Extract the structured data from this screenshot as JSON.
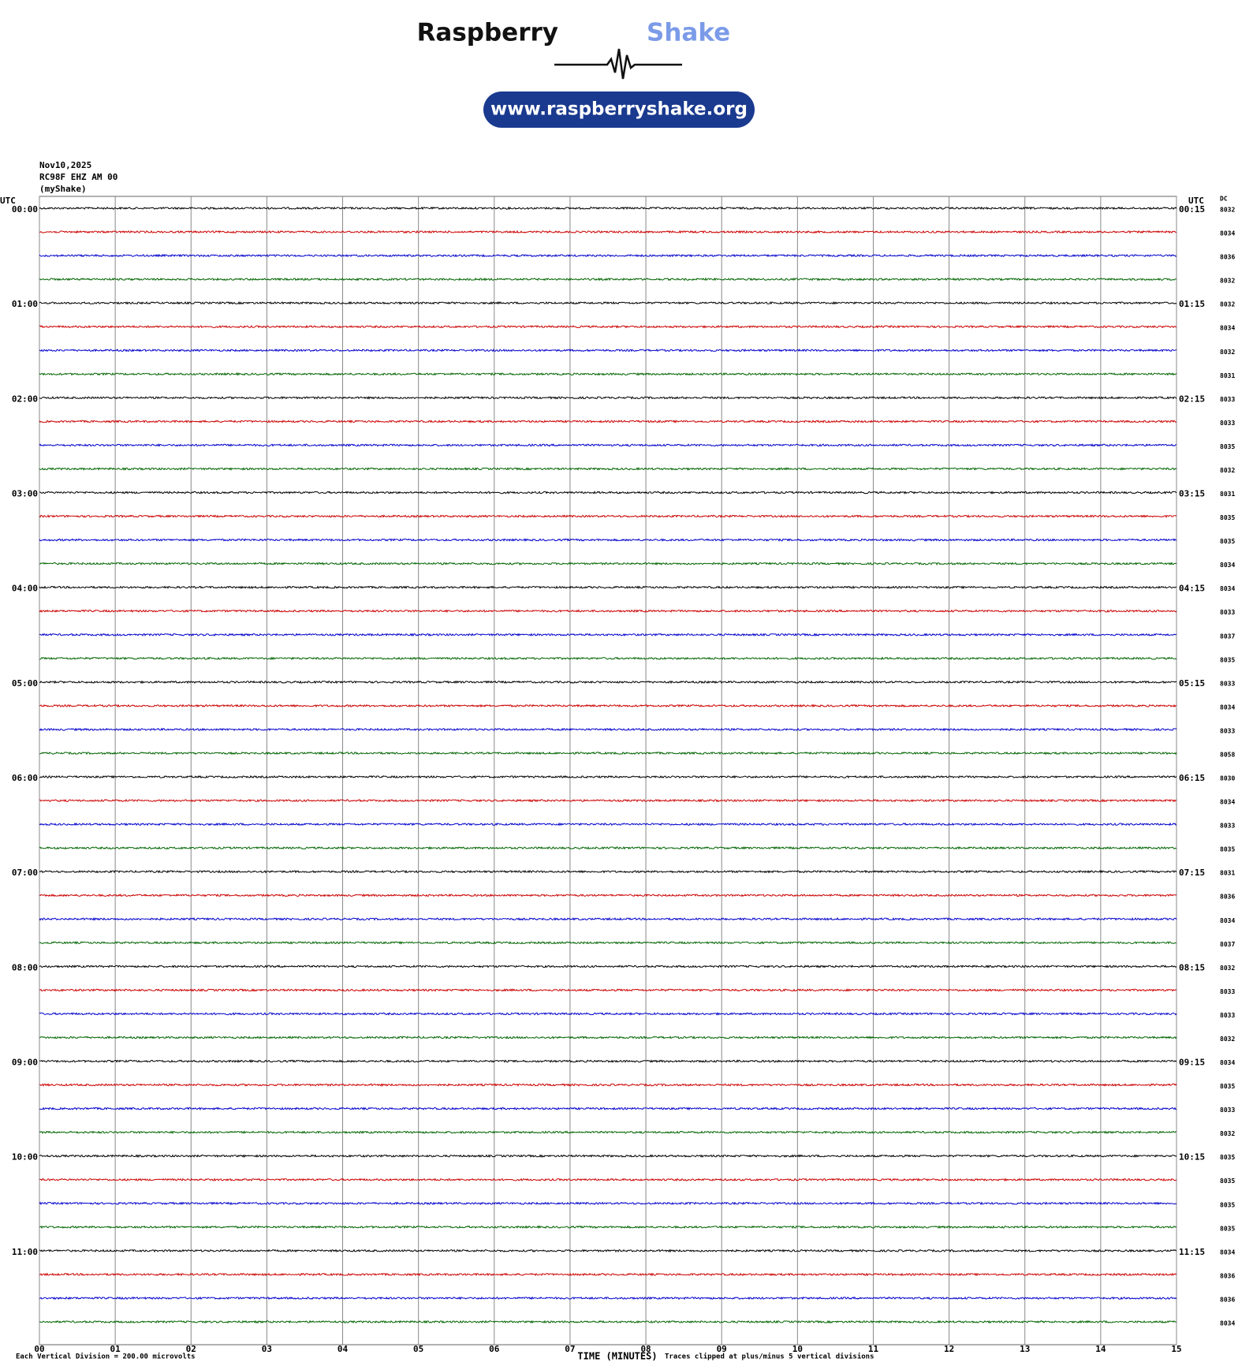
{
  "header": {
    "brand": "Raspberry",
    "brand_accent": "Shake",
    "url": "www.raspberryshake.org"
  },
  "chart_data": {
    "type": "helicorder",
    "date": "Nov10,2025",
    "station": "RC98F EHZ AM 00",
    "source": "(myShake)",
    "left_axis_label": "UTC",
    "right_axis_label": "UTC",
    "dc_label": "DC",
    "xlabel": "TIME (MINUTES)",
    "scale_note": "Each Vertical Division =  200.00 microvolts",
    "clip_note": "Traces clipped at plus/minus 5 vertical divisions",
    "xlim": [
      0,
      15
    ],
    "xticks": [
      {
        "value": 0,
        "label": "00"
      },
      {
        "value": 1,
        "label": "01"
      },
      {
        "value": 2,
        "label": "02"
      },
      {
        "value": 3,
        "label": "03"
      },
      {
        "value": 4,
        "label": "04"
      },
      {
        "value": 5,
        "label": "05"
      },
      {
        "value": 6,
        "label": "06"
      },
      {
        "value": 7,
        "label": "07"
      },
      {
        "value": 8,
        "label": "08"
      },
      {
        "value": 9,
        "label": "09"
      },
      {
        "value": 10,
        "label": "10"
      },
      {
        "value": 11,
        "label": "11"
      },
      {
        "value": 12,
        "label": "12"
      },
      {
        "value": 13,
        "label": "13"
      },
      {
        "value": 14,
        "label": "14"
      },
      {
        "value": 15,
        "label": "15"
      }
    ],
    "grid": true,
    "colors": [
      "#000000",
      "#cc0000",
      "#0000cc",
      "#006400"
    ],
    "left_labels": [
      "00:00",
      "01:00",
      "02:00",
      "03:00",
      "04:00",
      "05:00",
      "06:00",
      "07:00",
      "08:00",
      "09:00",
      "10:00",
      "11:00"
    ],
    "right_labels": [
      "00:15",
      "01:15",
      "02:15",
      "03:15",
      "04:15",
      "05:15",
      "06:15",
      "07:15",
      "08:15",
      "09:15",
      "10:15",
      "11:15"
    ],
    "dc": [
      8032,
      8034,
      8036,
      8032,
      8032,
      8034,
      8032,
      8031,
      8033,
      8033,
      8035,
      8032,
      8031,
      8035,
      8035,
      8034,
      8034,
      8033,
      8037,
      8035,
      8033,
      8034,
      8033,
      8058,
      8030,
      8034,
      8033,
      8035,
      8031,
      8036,
      8034,
      8037,
      8032,
      8033,
      8033,
      8032,
      8034,
      8035,
      8033,
      8032,
      8035,
      8035,
      8035,
      8035,
      8034,
      8036,
      8036,
      8034
    ]
  }
}
